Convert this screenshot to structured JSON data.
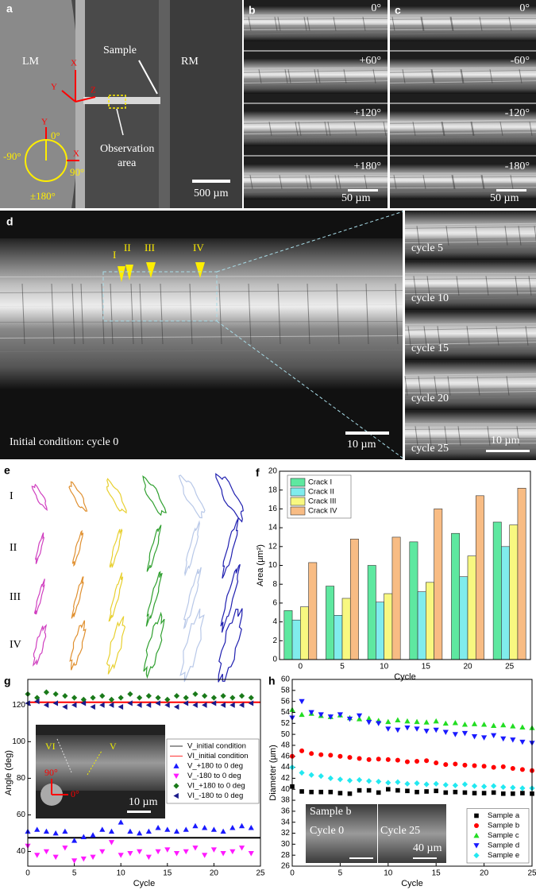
{
  "figure": {
    "a": {
      "label": "a",
      "lm": "LM",
      "rm": "RM",
      "sample": "Sample",
      "obs1": "Observation",
      "obs2": "area",
      "scale": "500 µm",
      "ax_x": "X",
      "ax_y": "Y",
      "ax_z": "Z",
      "c_y": "Y",
      "c_x": "X",
      "deg0": "0°",
      "degm90": "-90°",
      "deg90": "90°",
      "deg180": "±180°"
    },
    "b": {
      "label": "b",
      "angles": [
        "0°",
        "+60°",
        "+120°",
        "+180°"
      ],
      "scale": "50 µm"
    },
    "c": {
      "label": "c",
      "angles": [
        "0°",
        "-60°",
        "-120°",
        "-180°"
      ],
      "scale": "50 µm"
    },
    "d": {
      "label": "d",
      "cracks": [
        "I",
        "II",
        "III",
        "IV"
      ],
      "caption": "Initial condition: cycle 0",
      "scale": "10 µm",
      "cycles": [
        "cycle 5",
        "cycle 10",
        "cycle 15",
        "cycle 20",
        "cycle 25"
      ],
      "side_scale": "10 µm"
    },
    "e": {
      "label": "e",
      "rows": [
        "I",
        "II",
        "III",
        "IV"
      ]
    },
    "g_inset": {
      "vi": "VI",
      "v": "V",
      "deg90": "90°",
      "deg0": "0°",
      "scale": "10 µm"
    },
    "h_inset": {
      "sample": "Sample b",
      "cycle0": "Cycle 0",
      "cycle25": "Cycle 25",
      "scale": "40 µm"
    }
  },
  "chart_data": [
    {
      "type": "bar",
      "panel": "f",
      "x_label": "Cycle",
      "y_label": "Area (µm²)",
      "categories": [
        "0",
        "5",
        "10",
        "15",
        "20",
        "25"
      ],
      "series": [
        {
          "name": "Crack I",
          "color": "#5ee8a0",
          "values": [
            5.2,
            7.8,
            10,
            12.5,
            13.4,
            14.6
          ]
        },
        {
          "name": "Crack II",
          "color": "#80ecec",
          "values": [
            4.2,
            4.7,
            6.1,
            7.2,
            8.8,
            12
          ]
        },
        {
          "name": "Crack III",
          "color": "#f8f880",
          "values": [
            5.6,
            6.5,
            7,
            8.2,
            11,
            14.3
          ]
        },
        {
          "name": "Crack IV",
          "color": "#f8bc84",
          "values": [
            10.3,
            12.8,
            13,
            16,
            17.4,
            18.2
          ]
        }
      ],
      "ylim": [
        0,
        20
      ],
      "yticks": [
        0,
        2,
        4,
        6,
        8,
        10,
        12,
        14,
        16,
        18,
        20
      ],
      "legend": "upper-left"
    },
    {
      "type": "scatter",
      "panel": "g",
      "x_label": "Cycle",
      "y_label": "Angle (deg)",
      "x": [
        0,
        1,
        2,
        3,
        4,
        5,
        6,
        7,
        8,
        9,
        10,
        11,
        12,
        13,
        14,
        15,
        16,
        17,
        18,
        19,
        20,
        21,
        22,
        23,
        24
      ],
      "lines": [
        {
          "name": "V_initial condition",
          "color": "#000000",
          "value": 47.5
        },
        {
          "name": "VI_initial condition",
          "color": "#ff0000",
          "value": 121.5
        }
      ],
      "series": [
        {
          "name": "V_+180 to 0 deg",
          "color": "#1a1aff",
          "marker": "triangle-up",
          "values": [
            51,
            52,
            51,
            50,
            51,
            46,
            48,
            49,
            52,
            51,
            56,
            51,
            50,
            51,
            53,
            52,
            51,
            52,
            54,
            53,
            52,
            51,
            53,
            54,
            53
          ]
        },
        {
          "name": "V_-180 to 0 deg",
          "color": "#ff1aff",
          "marker": "triangle-down",
          "values": [
            43,
            38,
            40,
            37,
            42,
            35,
            36,
            37,
            40,
            45,
            38,
            39,
            40,
            37,
            40,
            41,
            39,
            40,
            42,
            38,
            41,
            39,
            40,
            42,
            39
          ]
        },
        {
          "name": "VI_+180 to 0 deg",
          "color": "#1a7a1a",
          "marker": "diamond",
          "values": [
            126,
            124,
            127,
            126,
            125,
            124,
            123,
            124,
            125,
            123,
            124,
            126,
            124,
            125,
            124,
            123,
            125,
            124,
            126,
            125,
            124,
            125,
            124,
            125,
            124
          ]
        },
        {
          "name": "VI_-180 to 0 deg",
          "color": "#1a1a8a",
          "marker": "triangle-left",
          "values": [
            121,
            122,
            120,
            121,
            119,
            120,
            121,
            119,
            120,
            120,
            119,
            121,
            120,
            120,
            121,
            120,
            119,
            121,
            120,
            120,
            121,
            120,
            120,
            120,
            121
          ]
        }
      ],
      "xlim": [
        0,
        25
      ],
      "xticks": [
        0,
        5,
        10,
        15,
        20,
        25
      ],
      "ylim": [
        32,
        134
      ],
      "yticks": [
        40,
        60,
        80,
        100,
        120
      ],
      "legend": "center-right"
    },
    {
      "type": "scatter",
      "panel": "h",
      "x_label": "Cycle",
      "y_label": "Diameter (µm)",
      "x": [
        0,
        1,
        2,
        3,
        4,
        5,
        6,
        7,
        8,
        9,
        10,
        11,
        12,
        13,
        14,
        15,
        16,
        17,
        18,
        19,
        20,
        21,
        22,
        23,
        24,
        25
      ],
      "series": [
        {
          "name": "Sample a",
          "color": "#000000",
          "marker": "square",
          "values": [
            40.5,
            39.6,
            39.5,
            39.5,
            39.5,
            39.3,
            39.2,
            39.8,
            39.8,
            39.4,
            40,
            39.8,
            39.7,
            39.5,
            39.6,
            39.7,
            39.4,
            39.5,
            39.4,
            39.3,
            39.3,
            39.4,
            39.2,
            39.2,
            39.3,
            39.2
          ]
        },
        {
          "name": "Sample b",
          "color": "#ff0000",
          "marker": "circle",
          "values": [
            46,
            47,
            46.5,
            46.3,
            46.2,
            46,
            45.8,
            45.6,
            45.4,
            45.5,
            45.4,
            45.3,
            45,
            45.1,
            45.2,
            44.8,
            44.5,
            44.6,
            44.4,
            44.3,
            44.2,
            44,
            44.1,
            43.8,
            43.6,
            43.4
          ]
        },
        {
          "name": "Sample c",
          "color": "#22dd22",
          "marker": "triangle-up",
          "values": [
            54.5,
            53.6,
            53.8,
            53.4,
            53.2,
            53.5,
            53,
            52.8,
            52.9,
            52.5,
            52.3,
            52.6,
            52.4,
            52.3,
            52.2,
            52.4,
            52,
            52.1,
            51.8,
            51.9,
            51.8,
            51.6,
            51.7,
            51.5,
            51.3,
            51.2
          ]
        },
        {
          "name": "Sample d",
          "color": "#1a1aff",
          "marker": "triangle-down",
          "values": [
            53,
            56,
            54,
            53.6,
            53.2,
            53.6,
            52.8,
            53.4,
            52.2,
            52,
            51,
            50.8,
            51.2,
            51,
            50.6,
            50.8,
            50.4,
            50,
            50.2,
            49.6,
            49.4,
            49.8,
            49.2,
            49,
            48.6,
            48.4
          ]
        },
        {
          "name": "Sample e",
          "color": "#22e8f0",
          "marker": "diamond",
          "values": [
            44,
            43,
            42.6,
            42.4,
            42,
            41.8,
            41.6,
            41.7,
            41.5,
            41.4,
            41.2,
            41.3,
            41,
            41.1,
            40.9,
            41,
            40.8,
            40.7,
            40.9,
            40.6,
            40.5,
            40.6,
            40.4,
            40.3,
            40.2,
            40.2
          ]
        }
      ],
      "xlim": [
        0,
        25
      ],
      "xticks": [
        0,
        5,
        10,
        15,
        20,
        25
      ],
      "ylim": [
        26,
        60
      ],
      "yticks": [
        26,
        28,
        30,
        32,
        34,
        36,
        38,
        40,
        42,
        44,
        46,
        48,
        50,
        52,
        54,
        56,
        58,
        60
      ],
      "legend": "lower-right"
    }
  ]
}
